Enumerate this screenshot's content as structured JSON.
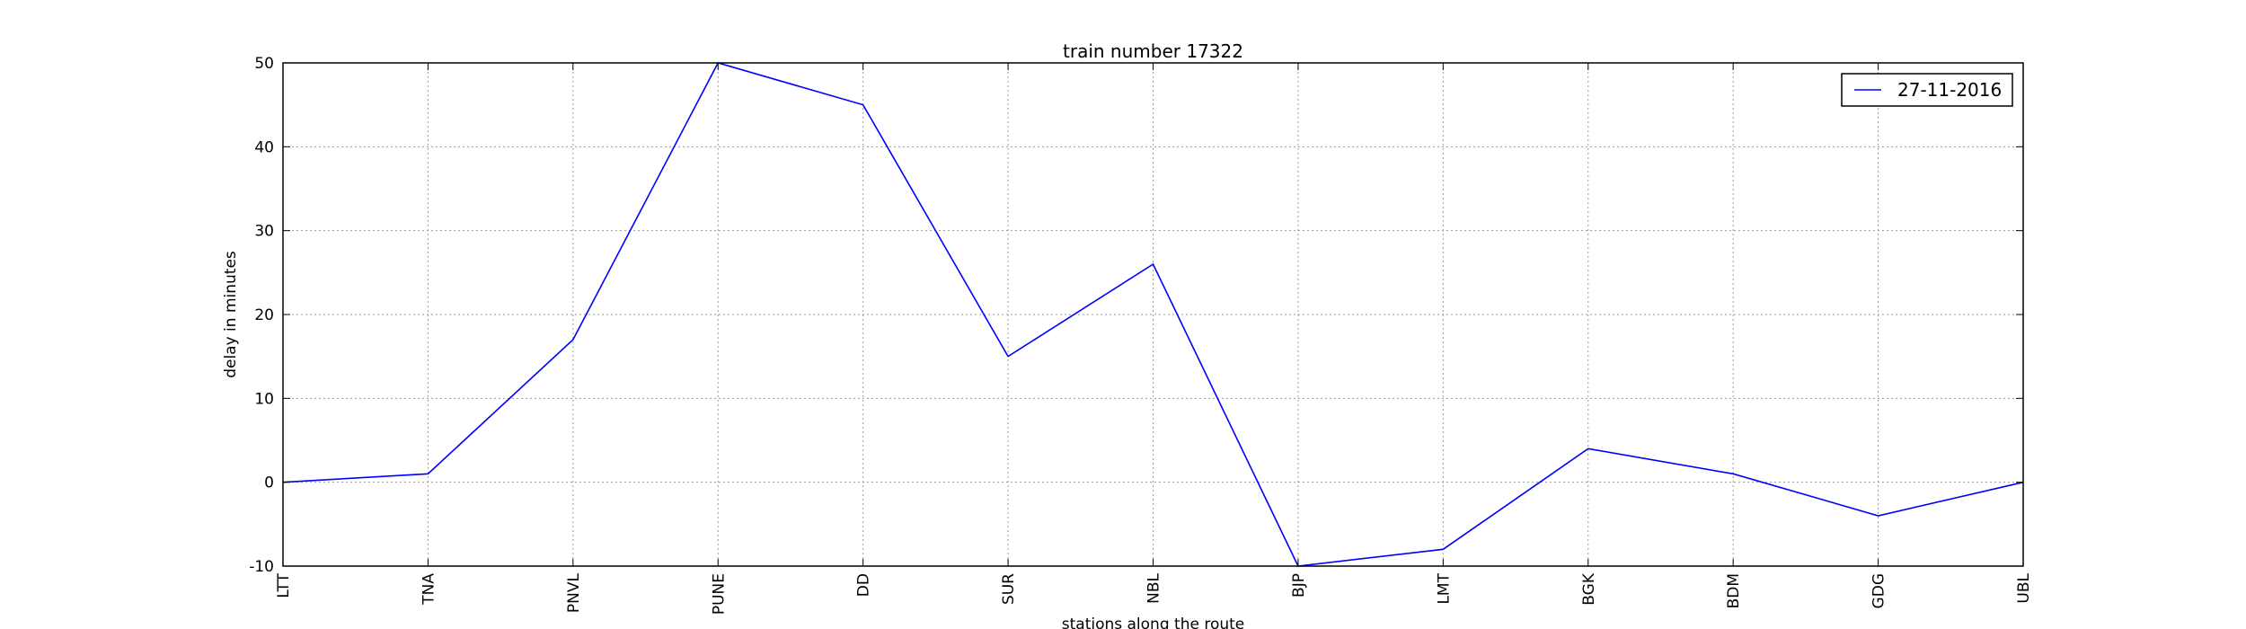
{
  "chart_data": {
    "type": "line",
    "title": "train number 17322",
    "xlabel": "stations along the route",
    "ylabel": "delay in minutes",
    "categories": [
      "LTT",
      "TNA",
      "PNVL",
      "PUNE",
      "DD",
      "SUR",
      "NBL",
      "BJP",
      "LMT",
      "BGK",
      "BDM",
      "GDG",
      "UBL"
    ],
    "series": [
      {
        "name": "27-11-2016",
        "values": [
          0,
          1,
          17,
          50,
          45,
          15,
          26,
          -10,
          -8,
          4,
          1,
          -4,
          0
        ]
      }
    ],
    "ylim": [
      -10,
      50
    ],
    "yticks": [
      -10,
      0,
      10,
      20,
      30,
      40,
      50
    ],
    "grid": true,
    "legend_position": "top-right",
    "colors": {
      "series": "#0000ff",
      "frame": "#000000",
      "grid": "#9a9a9a"
    }
  }
}
